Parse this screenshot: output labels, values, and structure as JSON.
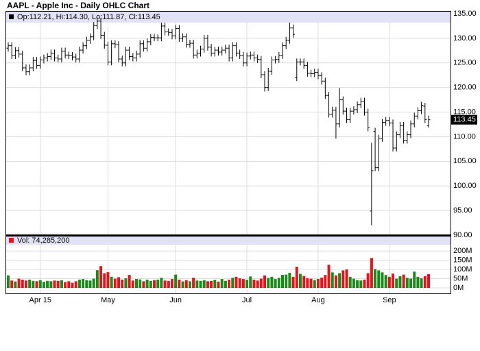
{
  "chart_data": {
    "type": "ohlc",
    "title": "AAPL - Apple Inc - Daily OHLC Chart",
    "ohlc_label": "Op:112.21, Hi:114.30, Lo:111.87, Cl:113.45",
    "volume_label": "Vol: 74,285,200",
    "open": [
      128.0,
      128.5,
      126.5,
      127.5,
      126.8,
      124.0,
      123.2,
      124.0,
      125.5,
      124.5,
      125.6,
      126.0,
      126.3,
      127.0,
      126.0,
      125.8,
      127.4,
      126.6,
      126.5,
      126.2,
      125.8,
      127.6,
      128.5,
      129.6,
      130.3,
      132.6,
      133.5,
      130.6,
      128.6,
      125.2,
      128.9,
      128.7,
      125.8,
      125.0,
      127.6,
      126.3,
      126.0,
      126.8,
      128.9,
      128.0,
      129.3,
      130.2,
      130.1,
      130.1,
      132.5,
      131.3,
      131.2,
      130.5,
      132.0,
      130.0,
      130.3,
      128.8,
      129.0,
      126.6,
      127.0,
      127.8,
      130.0,
      128.2,
      127.0,
      127.6,
      127.2,
      127.6,
      128.0,
      126.0,
      128.5,
      127.0,
      126.5,
      125.0,
      126.4,
      126.6,
      126.0,
      125.7,
      122.6,
      120.0,
      123.3,
      125.6,
      125.7,
      126.5,
      128.5,
      129.6,
      132.1,
      122.0,
      125.2,
      125.2,
      124.5,
      122.9,
      122.8,
      123.1,
      122.4,
      121.3,
      118.4,
      114.6,
      115.4,
      112.6,
      117.5,
      115.2,
      113.5,
      115.2,
      115.5,
      116.5,
      117.2,
      115.0,
      94.9,
      111.1,
      103.7,
      109.7,
      112.9,
      113.3,
      112.8,
      107.7,
      110.4,
      112.3,
      109.3,
      110.4,
      112.6,
      114.2,
      115.3,
      116.2,
      112.21
    ],
    "high": [
      129.2,
      129.2,
      128.2,
      128.2,
      127.5,
      124.7,
      124.7,
      126.2,
      126.2,
      126.3,
      126.7,
      127.0,
      127.7,
      127.7,
      126.7,
      128.1,
      128.1,
      127.3,
      127.2,
      126.9,
      128.3,
      129.2,
      130.3,
      131.0,
      133.3,
      134.2,
      134.2,
      131.3,
      129.3,
      129.6,
      129.6,
      129.4,
      126.5,
      128.3,
      128.3,
      127.0,
      127.5,
      129.6,
      129.6,
      130.0,
      130.9,
      130.9,
      130.8,
      133.2,
      133.2,
      132.0,
      131.9,
      132.7,
      132.7,
      131.0,
      131.0,
      129.7,
      129.7,
      127.7,
      128.5,
      130.7,
      130.7,
      128.9,
      128.3,
      128.3,
      128.3,
      128.7,
      128.7,
      129.2,
      129.2,
      127.7,
      127.2,
      127.1,
      127.3,
      127.3,
      126.7,
      126.4,
      123.3,
      124.0,
      126.3,
      126.4,
      127.2,
      129.2,
      130.3,
      133.2,
      132.8,
      125.9,
      125.9,
      125.9,
      125.2,
      123.6,
      123.8,
      123.8,
      123.1,
      122.0,
      119.1,
      116.1,
      116.1,
      119.9,
      118.2,
      115.9,
      115.9,
      116.2,
      117.2,
      117.9,
      117.9,
      115.7,
      108.8,
      111.8,
      110.4,
      113.6,
      114.0,
      114.0,
      113.5,
      111.1,
      113.0,
      113.0,
      111.1,
      113.3,
      114.9,
      116.0,
      117.1,
      116.9,
      114.3
    ],
    "low": [
      127.3,
      125.8,
      125.8,
      126.1,
      123.3,
      122.5,
      122.5,
      123.3,
      123.8,
      123.8,
      124.9,
      125.3,
      125.6,
      125.3,
      125.1,
      125.1,
      125.9,
      125.8,
      125.5,
      125.1,
      125.1,
      126.9,
      127.8,
      128.9,
      129.6,
      131.9,
      129.9,
      127.9,
      124.5,
      124.5,
      128.0,
      125.1,
      124.3,
      124.3,
      125.6,
      125.3,
      125.3,
      126.1,
      127.3,
      127.3,
      128.6,
      129.4,
      129.4,
      129.4,
      130.6,
      130.5,
      129.8,
      129.8,
      129.3,
      129.3,
      128.1,
      128.1,
      125.9,
      125.9,
      126.3,
      127.1,
      127.5,
      126.3,
      126.3,
      126.5,
      126.5,
      126.9,
      125.3,
      125.3,
      126.3,
      125.8,
      124.3,
      124.3,
      125.7,
      125.3,
      125.0,
      121.9,
      119.2,
      119.3,
      122.6,
      124.9,
      125.0,
      125.8,
      127.8,
      128.9,
      130.1,
      121.3,
      124.5,
      123.8,
      122.2,
      122.1,
      122.1,
      121.7,
      120.6,
      117.7,
      113.9,
      113.9,
      109.6,
      111.9,
      114.5,
      112.8,
      112.8,
      114.5,
      114.8,
      115.8,
      114.3,
      111.1,
      92.0,
      103.0,
      103.0,
      109.0,
      112.2,
      112.1,
      107.0,
      107.0,
      109.7,
      108.6,
      108.6,
      109.7,
      111.9,
      113.5,
      114.6,
      112.8,
      111.87
    ],
    "close": [
      128.5,
      126.5,
      127.5,
      126.8,
      124.0,
      123.2,
      124.0,
      125.5,
      124.5,
      125.6,
      126.0,
      126.3,
      127.0,
      126.0,
      125.8,
      127.4,
      126.6,
      126.5,
      126.2,
      125.8,
      127.6,
      128.5,
      129.6,
      130.3,
      132.6,
      133.5,
      130.6,
      128.6,
      125.2,
      128.9,
      128.7,
      125.8,
      125.0,
      127.6,
      126.3,
      126.0,
      126.8,
      128.9,
      128.0,
      129.3,
      130.2,
      130.1,
      130.1,
      132.5,
      131.3,
      131.2,
      130.5,
      132.0,
      130.0,
      130.3,
      128.8,
      129.0,
      126.6,
      127.0,
      127.8,
      130.0,
      128.2,
      127.0,
      127.6,
      127.2,
      127.6,
      128.0,
      126.0,
      128.5,
      127.0,
      126.5,
      125.0,
      126.4,
      126.6,
      126.0,
      125.7,
      122.6,
      120.0,
      123.3,
      125.6,
      125.7,
      126.5,
      128.5,
      129.6,
      132.1,
      130.8,
      125.2,
      125.2,
      124.5,
      122.9,
      122.8,
      123.1,
      122.4,
      121.3,
      118.4,
      114.6,
      115.4,
      112.6,
      117.5,
      115.2,
      113.5,
      115.2,
      115.5,
      116.5,
      117.2,
      115.0,
      111.8,
      103.1,
      103.7,
      109.7,
      112.9,
      113.3,
      112.8,
      107.7,
      110.4,
      112.3,
      109.3,
      110.4,
      112.6,
      114.2,
      115.3,
      116.4,
      113.5,
      113.45
    ],
    "volume": [
      68,
      40,
      35,
      50,
      45,
      40,
      45,
      38,
      36,
      42,
      33,
      38,
      36,
      40,
      38,
      42,
      32,
      36,
      28,
      36,
      45,
      48,
      42,
      40,
      50,
      96,
      118,
      80,
      85,
      60,
      50,
      58,
      45,
      52,
      70,
      40,
      48,
      46,
      36,
      45,
      38,
      42,
      45,
      55,
      40,
      38,
      48,
      72,
      45,
      35,
      42,
      36,
      55,
      40,
      38,
      42,
      36,
      38,
      44,
      34,
      48,
      38,
      45,
      55,
      60,
      52,
      48,
      44,
      62,
      45,
      40,
      50,
      68,
      54,
      60,
      48,
      55,
      70,
      72,
      82,
      60,
      115,
      76,
      65,
      52,
      50,
      42,
      48,
      56,
      70,
      125,
      84,
      68,
      80,
      95,
      100,
      60,
      50,
      42,
      40,
      45,
      80,
      162,
      102,
      95,
      84,
      70,
      60,
      78,
      50,
      64,
      72,
      55,
      50,
      88,
      60,
      52,
      64,
      74.2852
    ],
    "xticks": [
      {
        "value": 9,
        "label": "Apr 15"
      },
      {
        "value": 28,
        "label": "May"
      },
      {
        "value": 47,
        "label": "Jun"
      },
      {
        "value": 67,
        "label": "Jul"
      },
      {
        "value": 87,
        "label": "Aug"
      },
      {
        "value": 107,
        "label": "Sep"
      }
    ],
    "ylim": [
      90,
      135
    ],
    "yticks": [
      {
        "value": 90,
        "label": "90.00"
      },
      {
        "value": 95,
        "label": "95.00"
      },
      {
        "value": 100,
        "label": "100.00"
      },
      {
        "value": 105,
        "label": "105.00"
      },
      {
        "value": 110,
        "label": "110.00"
      },
      {
        "value": 115,
        "label": "115.00"
      },
      {
        "value": 120,
        "label": "120.00"
      },
      {
        "value": 125,
        "label": "125.00"
      },
      {
        "value": 130,
        "label": "130.00"
      },
      {
        "value": 135,
        "label": "135.00"
      }
    ],
    "volume_ylim": [
      0,
      230
    ],
    "volume_yticks": [
      {
        "value": 0,
        "label": "0M"
      },
      {
        "value": 50,
        "label": "50M"
      },
      {
        "value": 100,
        "label": "100M"
      },
      {
        "value": 150,
        "label": "150M"
      },
      {
        "value": 200,
        "label": "200M"
      }
    ],
    "bar_color": "#000000",
    "up_color": "#1a8a1a",
    "down_color": "#e3141b",
    "grid": true
  }
}
